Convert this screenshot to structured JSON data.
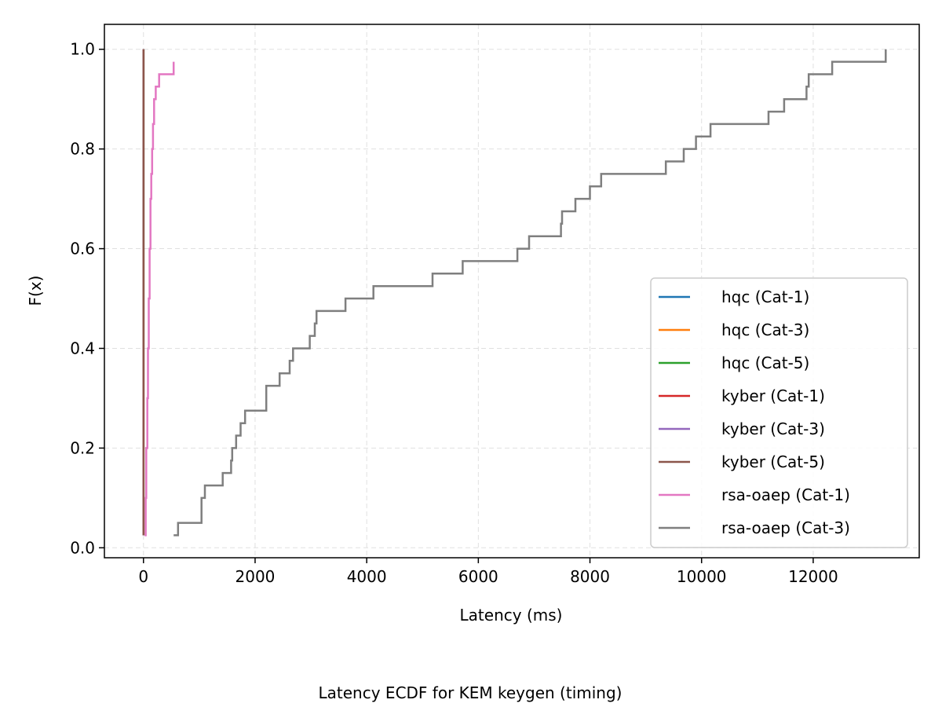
{
  "chart_data": {
    "type": "line",
    "title": "",
    "caption": "Latency ECDF for KEM keygen (timing)",
    "xlabel": "Latency (ms)",
    "ylabel": "F(x)",
    "xlim": [
      -700,
      13900
    ],
    "ylim": [
      -0.02,
      1.05
    ],
    "xticks": [
      0,
      2000,
      4000,
      6000,
      8000,
      10000,
      12000
    ],
    "yticks": [
      0.0,
      0.2,
      0.4,
      0.6,
      0.8,
      1.0
    ],
    "xtick_labels": [
      "0",
      "2000",
      "4000",
      "6000",
      "8000",
      "10000",
      "12000"
    ],
    "ytick_labels": [
      "0.0",
      "0.2",
      "0.4",
      "0.6",
      "0.8",
      "1.0"
    ],
    "grid": true,
    "legend_position": "lower-right",
    "series": [
      {
        "name": "hqc (Cat-1)",
        "color": "#1f77b4",
        "x": [
          0,
          0
        ],
        "y": [
          0.025,
          1.0
        ]
      },
      {
        "name": "hqc (Cat-3)",
        "color": "#ff7f0e",
        "x": [
          0,
          0
        ],
        "y": [
          0.025,
          1.0
        ]
      },
      {
        "name": "hqc (Cat-5)",
        "color": "#2ca02c",
        "x": [
          0,
          0
        ],
        "y": [
          0.025,
          1.0
        ]
      },
      {
        "name": "kyber (Cat-1)",
        "color": "#d62728",
        "x": [
          0,
          0
        ],
        "y": [
          0.025,
          1.0
        ]
      },
      {
        "name": "kyber (Cat-3)",
        "color": "#9467bd",
        "x": [
          0,
          0
        ],
        "y": [
          0.025,
          1.0
        ]
      },
      {
        "name": "kyber (Cat-5)",
        "color": "#8c564b",
        "x": [
          0,
          0
        ],
        "y": [
          0.025,
          1.0
        ]
      },
      {
        "name": "rsa-oaep (Cat-1)",
        "color": "#e377c2",
        "x": [
          20,
          40,
          50,
          70,
          80,
          95,
          110,
          125,
          140,
          155,
          170,
          190,
          220,
          280,
          540
        ],
        "y": [
          0.025,
          0.1,
          0.2,
          0.3,
          0.4,
          0.5,
          0.6,
          0.7,
          0.75,
          0.8,
          0.85,
          0.9,
          0.925,
          0.95,
          0.975
        ]
      },
      {
        "name": "rsa-oaep (Cat-3)",
        "color": "#7f7f7f",
        "x": [
          540,
          620,
          1040,
          1100,
          1420,
          1570,
          1590,
          1660,
          1740,
          1820,
          2200,
          2440,
          2620,
          2680,
          2980,
          3070,
          3100,
          3620,
          4120,
          5180,
          5720,
          6700,
          6910,
          7480,
          7500,
          7740,
          8000,
          8200,
          9360,
          9680,
          9900,
          10160,
          11200,
          11480,
          11880,
          11920,
          12340,
          13300
        ],
        "y": [
          0.025,
          0.05,
          0.1,
          0.125,
          0.15,
          0.175,
          0.2,
          0.225,
          0.25,
          0.275,
          0.325,
          0.35,
          0.375,
          0.4,
          0.425,
          0.45,
          0.475,
          0.5,
          0.525,
          0.55,
          0.575,
          0.6,
          0.625,
          0.65,
          0.675,
          0.7,
          0.725,
          0.75,
          0.775,
          0.8,
          0.825,
          0.85,
          0.875,
          0.9,
          0.925,
          0.95,
          0.975,
          1.0
        ]
      }
    ]
  }
}
